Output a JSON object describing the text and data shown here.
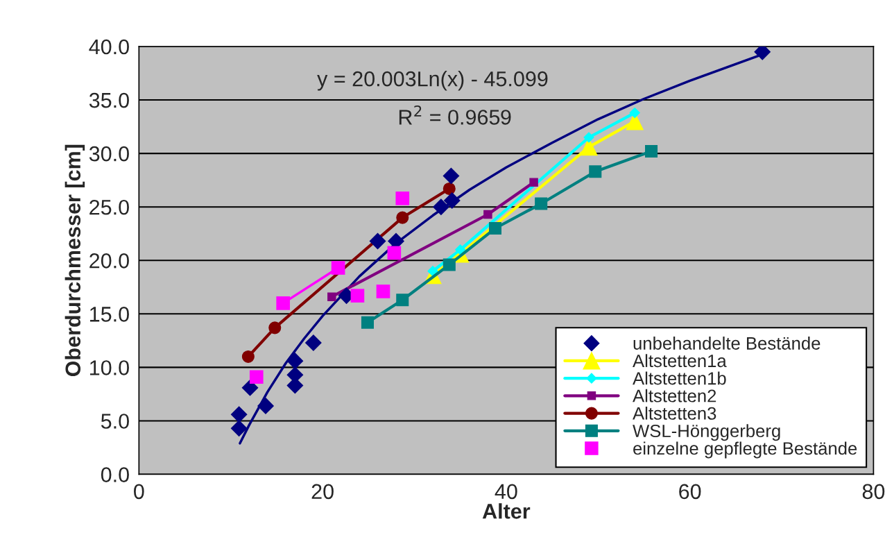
{
  "chart_data": {
    "type": "scatter",
    "xlabel": "Alter",
    "ylabel": "Oberdurchmesser [cm]",
    "xlim": [
      0,
      80
    ],
    "xticks": [
      0,
      20,
      40,
      60,
      80
    ],
    "ylim": [
      0,
      40
    ],
    "yticks": [
      {
        "value": 0,
        "label": "0.0"
      },
      {
        "value": 5,
        "label": "5.0"
      },
      {
        "value": 10,
        "label": "10.0"
      },
      {
        "value": 15,
        "label": "15.0"
      },
      {
        "value": 20,
        "label": "20.0"
      },
      {
        "value": 25,
        "label": "25.0"
      },
      {
        "value": 30,
        "label": "30.0"
      },
      {
        "value": 35,
        "label": "35.0"
      },
      {
        "value": 40,
        "label": "40.0"
      }
    ],
    "grid": "y",
    "legend": "bottom right",
    "annotations": [
      "y = 20.003Ln(x) - 45.099",
      "R$^{2}$ = 0.9659"
    ],
    "series": [
      {
        "type": "line",
        "color": "#000080",
        "marker": "none",
        "x": [
          11,
          12,
          14,
          16,
          18,
          20,
          24,
          28,
          32,
          36,
          40,
          45,
          50,
          55,
          60,
          68
        ],
        "values": [
          2.9,
          4.6,
          7.7,
          10.4,
          12.7,
          14.8,
          18.5,
          21.6,
          24.2,
          26.6,
          28.7,
          31.0,
          33.2,
          35.1,
          36.8,
          39.3
        ]
      },
      {
        "type": "line",
        "color": "#ff00ff",
        "marker": "none",
        "x": [
          15.7,
          21.7
        ],
        "values": [
          16.0,
          19.3
        ]
      },
      {
        "name": "unbehandelte Bestände",
        "color": "#000080",
        "marker": "diamond",
        "x": [
          10.9,
          10.9,
          12.1,
          13.8,
          17.0,
          17.0,
          17.0,
          19.0,
          22.6,
          26.0,
          28.0,
          32.9,
          34.1,
          34.0,
          67.9
        ],
        "values": [
          5.6,
          4.3,
          8.1,
          6.4,
          10.6,
          9.3,
          8.3,
          12.3,
          16.7,
          21.8,
          21.8,
          25.0,
          25.6,
          27.9,
          39.5
        ]
      },
      {
        "type": "line",
        "name": "Altstetten1a",
        "color": "#ffff00",
        "marker": "triangle",
        "x": [
          32,
          35,
          49,
          54
        ],
        "values": [
          18.6,
          20.6,
          30.6,
          33.0
        ]
      },
      {
        "type": "line",
        "name": "Altstetten1b",
        "color": "#00ffff",
        "marker": "diamond",
        "x": [
          32,
          35,
          49,
          54
        ],
        "values": [
          19.0,
          21.0,
          31.5,
          33.8
        ]
      },
      {
        "type": "line",
        "name": "Altstetten2",
        "color": "#800080",
        "marker": "square",
        "x": [
          21,
          38,
          43
        ],
        "values": [
          16.6,
          24.3,
          27.3
        ]
      },
      {
        "type": "line",
        "name": "Altstetten3",
        "color": "#800000",
        "marker": "circle",
        "x": [
          11.9,
          14.8,
          28.7,
          33.8
        ],
        "values": [
          11.0,
          13.7,
          24.0,
          26.7
        ]
      },
      {
        "type": "line",
        "name": "WSL-Hönggerberg",
        "color": "#008080",
        "marker": "square",
        "x": [
          24.9,
          28.7,
          33.8,
          38.8,
          43.8,
          49.7,
          55.8
        ],
        "values": [
          14.2,
          16.3,
          19.6,
          23.0,
          25.3,
          28.3,
          30.2
        ]
      },
      {
        "name": "einzelne gepflegte Bestände",
        "color": "#ff00ff",
        "marker": "square",
        "x": [
          12.8,
          15.7,
          21.7,
          23.8,
          26.6,
          27.8,
          28.7
        ],
        "values": [
          9.1,
          16.0,
          19.3,
          16.7,
          17.1,
          20.7,
          25.8
        ]
      }
    ]
  }
}
